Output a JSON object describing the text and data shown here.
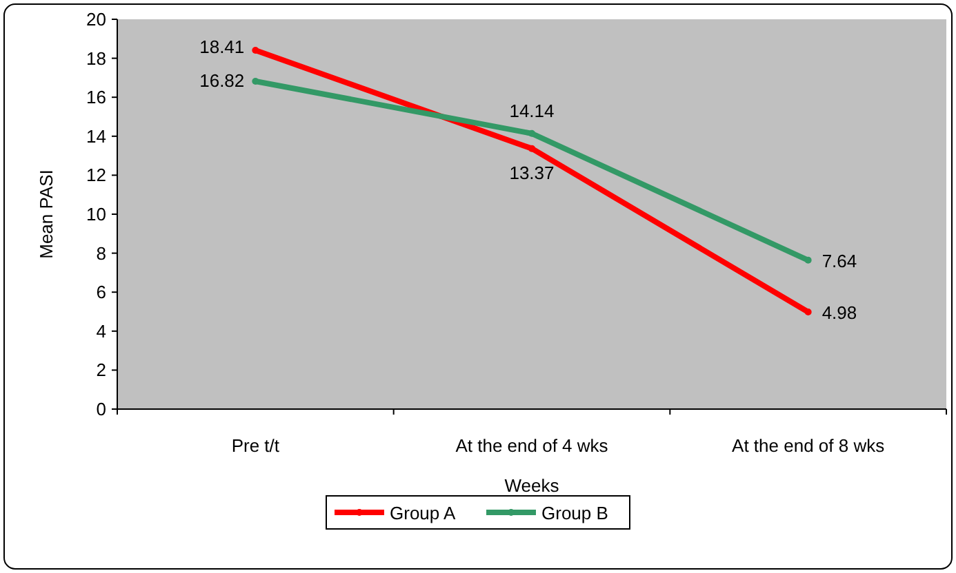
{
  "chart_data": {
    "type": "line",
    "xlabel": "Weeks",
    "ylabel": "Mean PASI",
    "categories": [
      "Pre t/t",
      "At the end of 4 wks",
      "At the end of 8 wks"
    ],
    "series": [
      {
        "name": "Group A",
        "color": "#ff0000",
        "values": [
          18.41,
          13.37,
          4.98
        ]
      },
      {
        "name": "Group B",
        "color": "#339966",
        "values": [
          16.82,
          14.14,
          7.64
        ]
      }
    ],
    "ylim": [
      0,
      20
    ],
    "yticks": [
      0,
      2,
      4,
      6,
      8,
      10,
      12,
      14,
      16,
      18,
      20
    ],
    "grid": false,
    "legend": "bottom",
    "marker": "circle",
    "data_labels": true
  }
}
